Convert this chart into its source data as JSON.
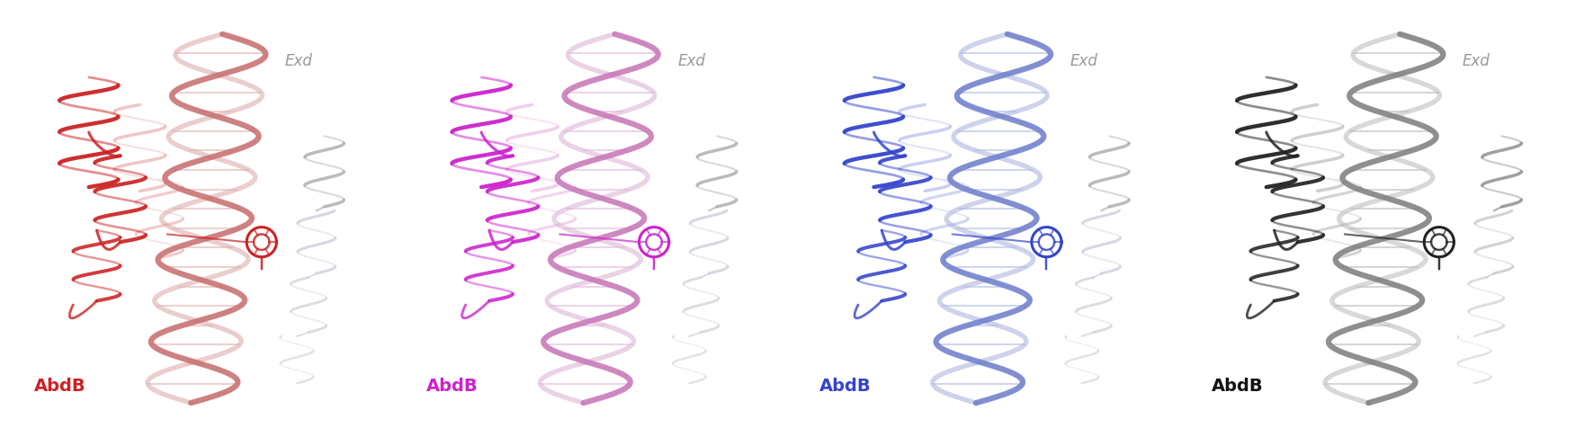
{
  "background_color": "#ffffff",
  "figsize": [
    17.51,
    4.86
  ],
  "dpi": 100,
  "panels": [
    {
      "abdb_color": "#cc2222",
      "abdb_fade": "#e8a0a0",
      "dna_color1": "#c87070",
      "dna_color2": "#deb0b0",
      "exd_color": "#aaaaaa",
      "exd_color2": "#c8c8d8",
      "motif_color": "#cc2222",
      "label_color": "#cc2222",
      "label_abdb": "AbdB",
      "label_exd": "Exd"
    },
    {
      "abdb_color": "#cc22cc",
      "abdb_fade": "#e8b0e0",
      "dna_color1": "#c878b8",
      "dna_color2": "#deb8d8",
      "exd_color": "#aaaaaa",
      "exd_color2": "#c8c8d8",
      "motif_color": "#cc22cc",
      "label_color": "#cc22cc",
      "label_abdb": "AbdB",
      "label_exd": "Exd"
    },
    {
      "abdb_color": "#3344cc",
      "abdb_fade": "#aab0e8",
      "dna_color1": "#7080cc",
      "dna_color2": "#b0b8e0",
      "exd_color": "#aaaaaa",
      "exd_color2": "#c8c8d8",
      "motif_color": "#3344cc",
      "label_color": "#3344cc",
      "label_abdb": "AbdB",
      "label_exd": "Exd"
    },
    {
      "abdb_color": "#222222",
      "abdb_fade": "#b0b0b0",
      "dna_color1": "#808080",
      "dna_color2": "#c0c0c0",
      "exd_color": "#888888",
      "exd_color2": "#c0c0c8",
      "motif_color": "#222222",
      "label_color": "#111111",
      "label_abdb": "AbdB",
      "label_exd": "Exd"
    }
  ]
}
